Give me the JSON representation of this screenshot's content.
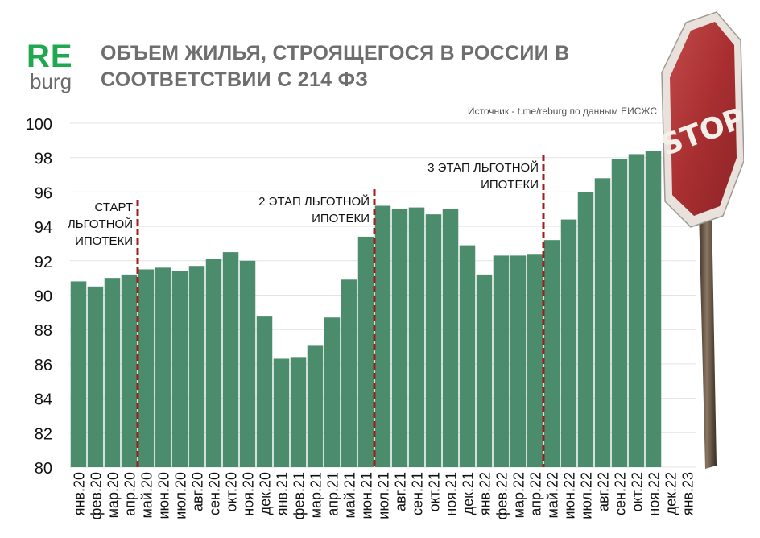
{
  "logo": {
    "re": "RE",
    "burg": "burg"
  },
  "title": "ОБЪЕМ ЖИЛЬЯ, СТРОЯЩЕГОСЯ В РОССИИ В СООТВЕТСТВИИ С 214 ФЗ",
  "source": "Источник - t.me/reburg по данным ЕИСЖС",
  "stop_sign": {
    "text": "STOP"
  },
  "colors": {
    "bar": "#4a8c6c",
    "divider": "#a11c1c",
    "grid": "#e3e3e3",
    "title": "#6e6e6e",
    "logo_green": "#1fa84f"
  },
  "chart_data": {
    "type": "bar",
    "title": "ОБЪЕМ ЖИЛЬЯ, СТРОЯЩЕГОСЯ В РОССИИ В СООТВЕТСТВИИ С 214 ФЗ",
    "xlabel": "",
    "ylabel": "",
    "ylim": [
      80,
      100
    ],
    "yticks": [
      80,
      82,
      84,
      86,
      88,
      90,
      92,
      94,
      96,
      98,
      100
    ],
    "grid": true,
    "legend": "none",
    "categories": [
      "янв.20",
      "фев.20",
      "мар.20",
      "апр.20",
      "май.20",
      "июн.20",
      "июл.20",
      "авг.20",
      "сен.20",
      "окт.20",
      "ноя.20",
      "дек.20",
      "янв.21",
      "фев.21",
      "мар.21",
      "апр.21",
      "май.21",
      "июн.21",
      "июл.21",
      "авг.21",
      "сен.21",
      "окт.21",
      "ноя.21",
      "дек.21",
      "янв.22",
      "фев.22",
      "мар.22",
      "апр.22",
      "май.22",
      "июн.22",
      "июл.22",
      "авг.22",
      "сен.22",
      "окт.22",
      "ноя.22",
      "дек.22",
      "янв.23"
    ],
    "values": [
      90.8,
      90.5,
      91.0,
      91.2,
      91.5,
      91.6,
      91.4,
      91.7,
      92.1,
      92.5,
      92.0,
      88.8,
      86.3,
      86.4,
      87.1,
      88.7,
      90.9,
      93.4,
      95.2,
      95.0,
      95.1,
      94.7,
      95.0,
      92.9,
      91.2,
      92.3,
      92.3,
      92.4,
      93.2,
      94.4,
      96.0,
      96.8,
      97.9,
      98.2,
      98.4,
      null,
      null
    ],
    "annotations": [
      {
        "after_category": "апр.20",
        "text": [
          "СТАРТ",
          "ЛЬГОТНОЙ",
          "ИПОТЕКИ"
        ]
      },
      {
        "after_category": "июн.21",
        "text": [
          "2 ЭТАП ЛЬГОТНОЙ",
          "ИПОТЕКИ"
        ]
      },
      {
        "after_category": "апр.22",
        "text": [
          "3 ЭТАП ЛЬГОТНОЙ",
          "ИПОТЕКИ"
        ]
      }
    ]
  }
}
